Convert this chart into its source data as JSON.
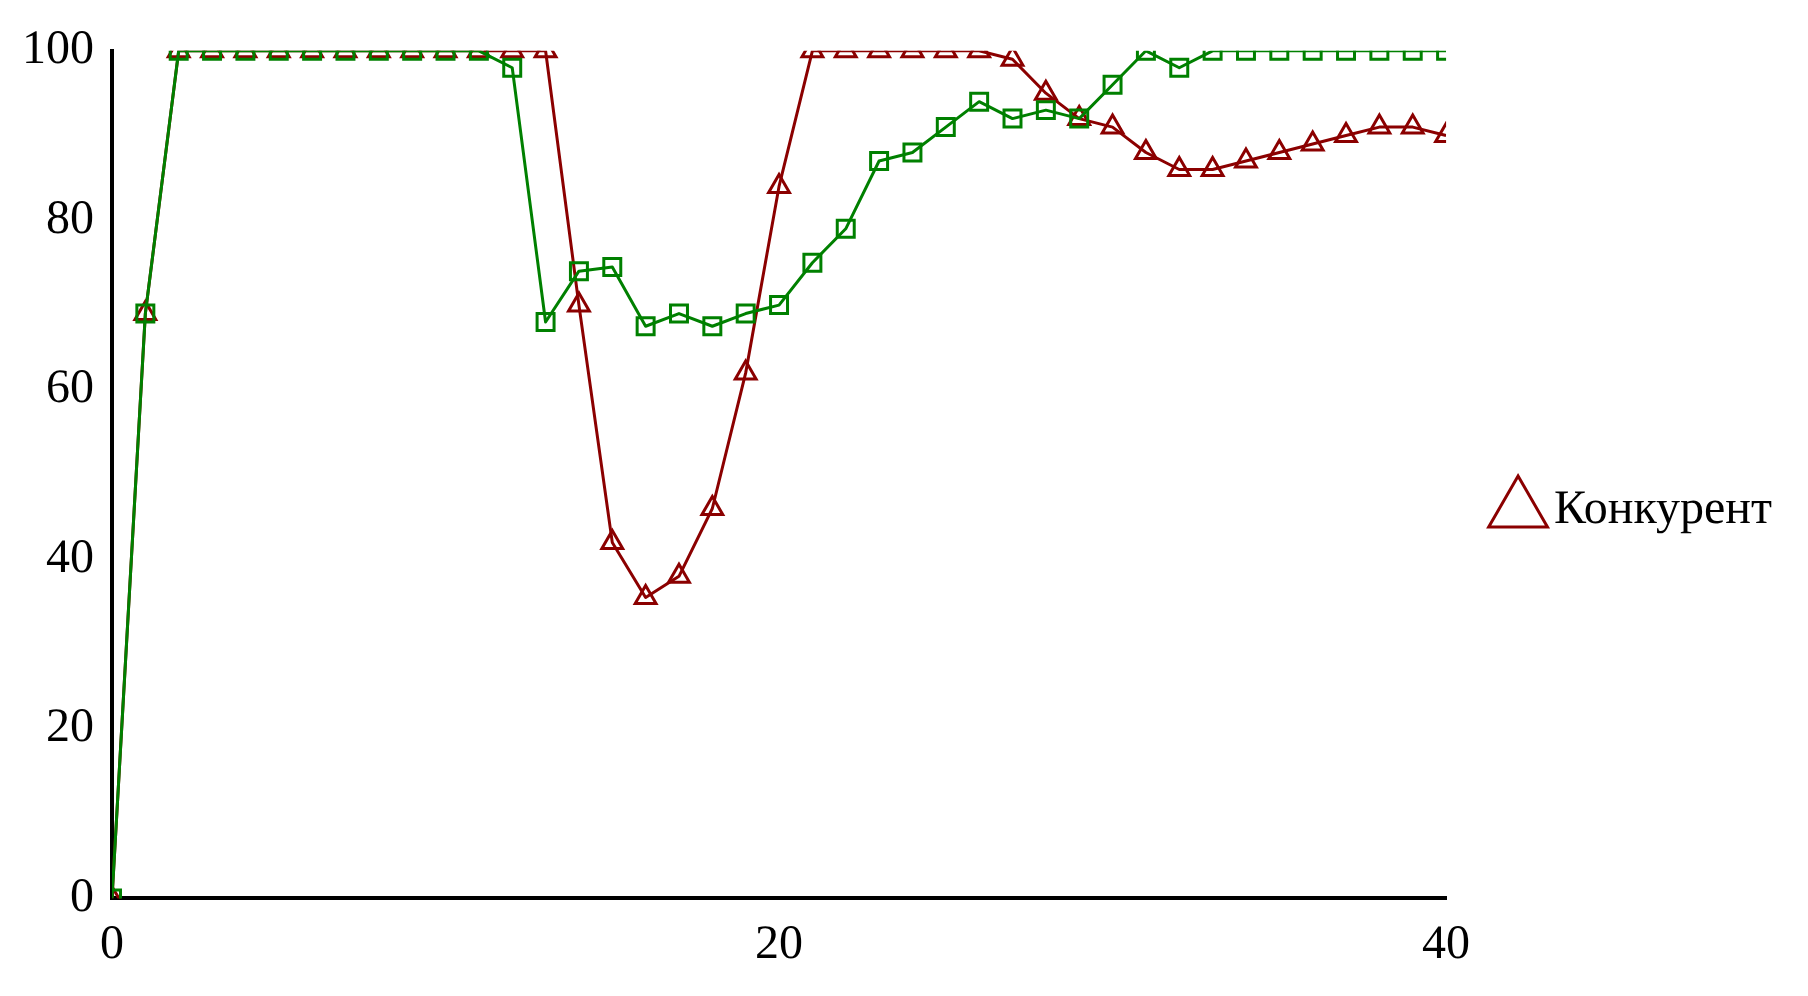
{
  "chart_data": {
    "type": "line",
    "x": [
      0,
      1,
      2,
      3,
      4,
      5,
      6,
      7,
      8,
      9,
      10,
      11,
      12,
      13,
      14,
      15,
      16,
      17,
      18,
      19,
      20,
      21,
      22,
      23,
      24,
      25,
      26,
      27,
      28,
      29,
      30,
      31,
      32,
      33,
      34,
      35,
      36,
      37,
      38,
      39,
      40
    ],
    "series": [
      {
        "color": "#008000",
        "marker": "square",
        "values": [
          0,
          69,
          100,
          100,
          100,
          100,
          100,
          100,
          100,
          100,
          100,
          100,
          98,
          68,
          74,
          74.5,
          67.5,
          69,
          67.5,
          69,
          70,
          75,
          79,
          87,
          88,
          91,
          94,
          92,
          93,
          92,
          96,
          100,
          98,
          100,
          100,
          100,
          100,
          100,
          100,
          100,
          100
        ]
      },
      {
        "name": "Конкурент",
        "color": "#8b0000",
        "marker": "triangle",
        "values": [
          0,
          69,
          100,
          100,
          100,
          100,
          100,
          100,
          100,
          100,
          100,
          100,
          100,
          100,
          70,
          42,
          35.5,
          38,
          46,
          62,
          84,
          100,
          100,
          100,
          100,
          100,
          100,
          99,
          95,
          92,
          91,
          88,
          86,
          86,
          87,
          88,
          89,
          90,
          91,
          91,
          90
        ]
      }
    ],
    "xlim": [
      0,
      40
    ],
    "xticks": [
      0,
      20,
      40
    ],
    "ylim": [
      0,
      100
    ],
    "yticks": [
      0,
      20,
      40,
      60,
      80,
      100
    ],
    "grid": false,
    "legend": "right",
    "line_style": "solid"
  }
}
